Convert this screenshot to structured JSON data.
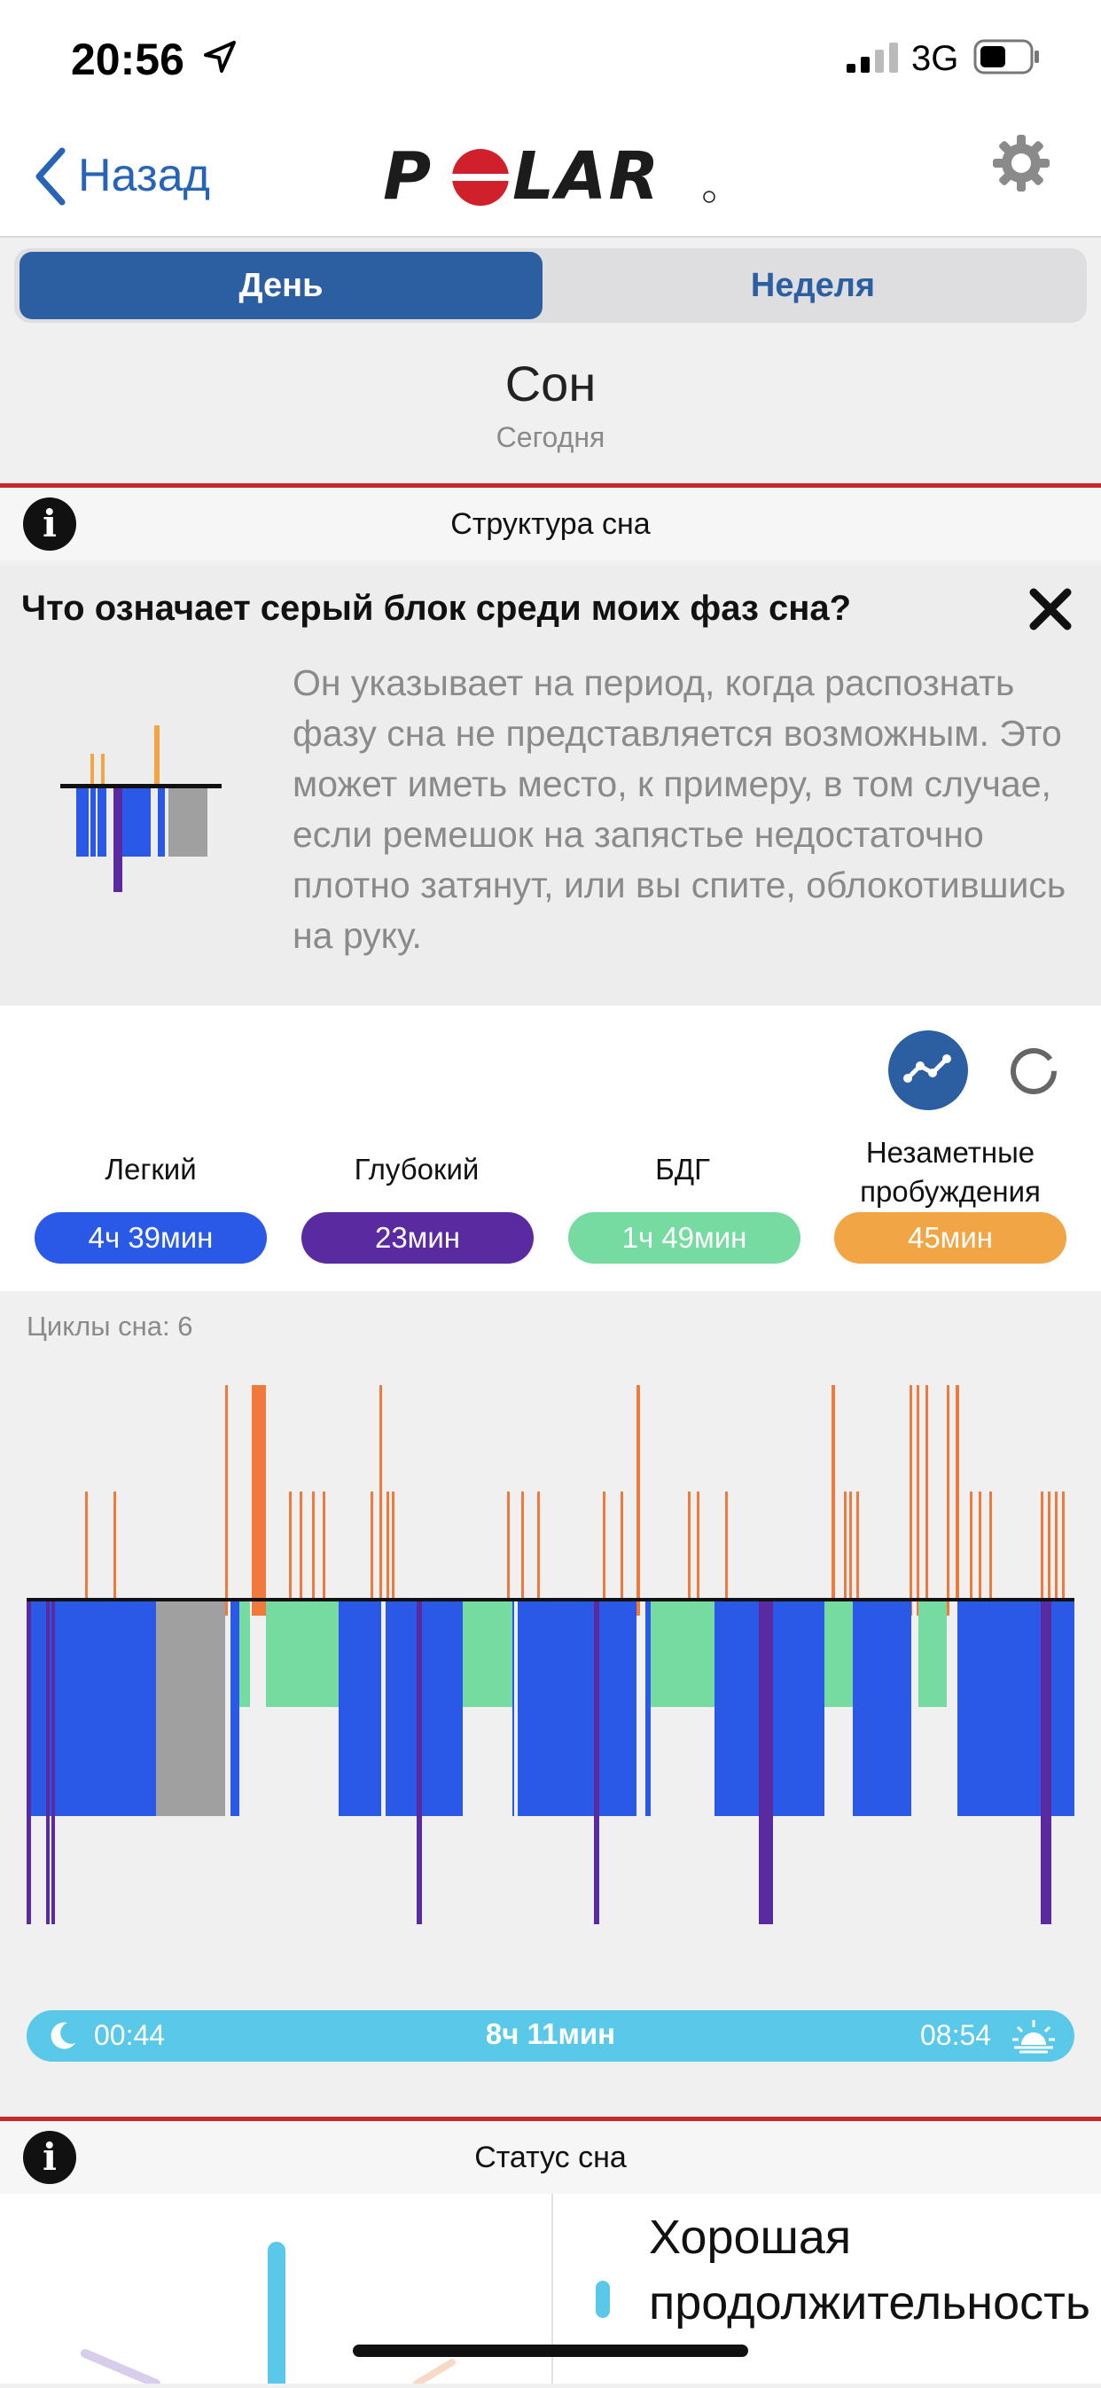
{
  "status_bar": {
    "time": "20:56",
    "network": "3G"
  },
  "nav": {
    "back_label": "Назад",
    "logo_text": "POLAR"
  },
  "tabs": [
    {
      "label": "День",
      "active": true
    },
    {
      "label": "Неделя",
      "active": false
    }
  ],
  "header": {
    "title": "Сон",
    "subtitle": "Сегодня"
  },
  "structure_section": {
    "title": "Структура сна"
  },
  "info_card": {
    "question": "Что означает серый блок среди моих фаз сна?",
    "text": "Он указывает на период, когда распознать фазу сна не представляется возможным. Это может иметь место, к примеру, в том случае, если ремешок на запястье недостаточно плотно затянут, или вы спите, облокотившись на руку."
  },
  "legend": [
    {
      "label": "Легкий",
      "value": "4ч 39мин",
      "color": "#2a59e8"
    },
    {
      "label": "Глубокий",
      "value": "23мин",
      "color": "#5a2ba0"
    },
    {
      "label": "БДГ",
      "value": "1ч 49мин",
      "color": "#76dba0"
    },
    {
      "label": "Незаметные пробуждения",
      "value": "45мин",
      "color": "#f2a545"
    }
  ],
  "cycles_label": "Циклы сна: 6",
  "sleep_period": {
    "start": "00:44",
    "duration": "8ч 11мин",
    "end": "08:54"
  },
  "status_section": {
    "title": "Статус сна",
    "text": "Хорошая продолжительность"
  },
  "colors": {
    "accent": "#2b5fa1",
    "danger": "#c8282d",
    "bar": "#5ac8e8",
    "wake": "#ef7a3b",
    "unknown": "#a0a0a0"
  }
}
